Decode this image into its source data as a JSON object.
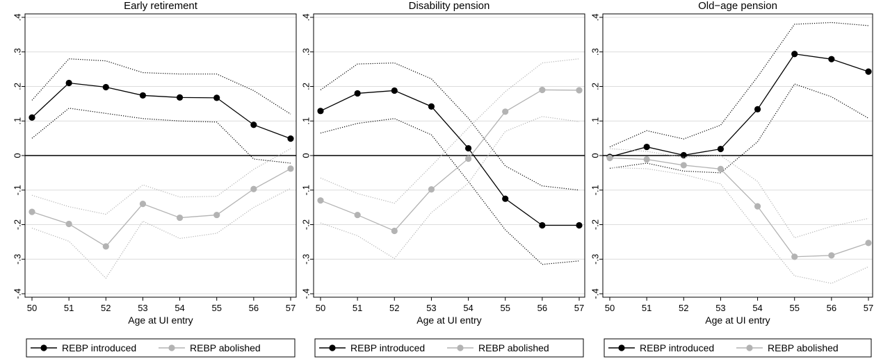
{
  "chart_data": [
    {
      "type": "line",
      "title": "Early retirement",
      "xlabel": "Age at UI entry",
      "ylabel": "",
      "x": [
        50,
        51,
        52,
        53,
        54,
        55,
        56,
        57
      ],
      "xticks": [
        "50",
        "51",
        "52",
        "53",
        "54",
        "55",
        "56",
        "57"
      ],
      "ylim": [
        -0.41,
        0.41
      ],
      "yticks": [
        -0.4,
        -0.3,
        -0.2,
        -0.1,
        0,
        0.1,
        0.2,
        0.3,
        0.4
      ],
      "ytick_labels": [
        "-.4",
        "-.3",
        "-.2",
        "-.1",
        "0",
        ".1",
        ".2",
        ".3",
        ".4"
      ],
      "grid": true,
      "series": [
        {
          "name": "REBP introduced",
          "color": "#000000",
          "values": [
            0.11,
            0.21,
            0.198,
            0.174,
            0.168,
            0.167,
            0.089,
            0.049
          ],
          "ci_upper": [
            0.16,
            0.28,
            0.274,
            0.24,
            0.236,
            0.236,
            0.188,
            0.12
          ],
          "ci_lower": [
            0.05,
            0.137,
            0.122,
            0.107,
            0.1,
            0.097,
            -0.01,
            -0.022
          ]
        },
        {
          "name": "REBP abolished",
          "color": "#b3b3b3",
          "values": [
            -0.163,
            -0.198,
            -0.263,
            -0.14,
            -0.18,
            -0.172,
            -0.097,
            -0.038
          ],
          "ci_upper": [
            -0.115,
            -0.148,
            -0.17,
            -0.085,
            -0.12,
            -0.118,
            -0.04,
            0.02
          ],
          "ci_lower": [
            -0.21,
            -0.248,
            -0.355,
            -0.19,
            -0.24,
            -0.225,
            -0.15,
            -0.095
          ]
        }
      ],
      "legend": {
        "position": "bottom",
        "entries": [
          "REBP introduced",
          "REBP abolished"
        ]
      }
    },
    {
      "type": "line",
      "title": "Disability pension",
      "xlabel": "Age at UI entry",
      "ylabel": "",
      "x": [
        50,
        51,
        52,
        53,
        54,
        55,
        56,
        57
      ],
      "xticks": [
        "50",
        "51",
        "52",
        "53",
        "54",
        "55",
        "56",
        "57"
      ],
      "ylim": [
        -0.41,
        0.41
      ],
      "yticks": [
        -0.4,
        -0.3,
        -0.2,
        -0.1,
        0,
        0.1,
        0.2,
        0.3,
        0.4
      ],
      "ytick_labels": [
        "-.4",
        "-.3",
        "-.2",
        "-.1",
        "0",
        ".1",
        ".2",
        ".3",
        ".4"
      ],
      "grid": true,
      "series": [
        {
          "name": "REBP introduced",
          "color": "#000000",
          "values": [
            0.129,
            0.18,
            0.188,
            0.142,
            0.021,
            -0.125,
            -0.202,
            -0.202
          ],
          "ci_upper": [
            0.19,
            0.265,
            0.268,
            0.222,
            0.108,
            -0.03,
            -0.088,
            -0.1
          ],
          "ci_lower": [
            0.065,
            0.093,
            0.107,
            0.06,
            -0.075,
            -0.215,
            -0.315,
            -0.305
          ]
        },
        {
          "name": "REBP abolished",
          "color": "#b3b3b3",
          "values": [
            -0.13,
            -0.172,
            -0.218,
            -0.098,
            -0.009,
            0.127,
            0.19,
            0.189
          ],
          "ci_upper": [
            -0.065,
            -0.11,
            -0.138,
            -0.03,
            0.08,
            0.185,
            0.268,
            0.28
          ],
          "ci_lower": [
            -0.195,
            -0.232,
            -0.298,
            -0.165,
            -0.08,
            0.07,
            0.113,
            0.098
          ]
        }
      ],
      "legend": {
        "position": "bottom",
        "entries": [
          "REBP introduced",
          "REBP abolished"
        ]
      }
    },
    {
      "type": "line",
      "title": "Old−age pension",
      "xlabel": "Age at UI entry",
      "ylabel": "",
      "x": [
        50,
        51,
        52,
        53,
        54,
        55,
        56,
        57
      ],
      "xticks": [
        "50",
        "51",
        "52",
        "53",
        "54",
        "55",
        "56",
        "57"
      ],
      "ylim": [
        -0.41,
        0.41
      ],
      "yticks": [
        -0.4,
        -0.3,
        -0.2,
        -0.1,
        0,
        0.1,
        0.2,
        0.3,
        0.4
      ],
      "ytick_labels": [
        "-.4",
        "-.3",
        "-.2",
        "-.1",
        "0",
        ".1",
        ".2",
        ".3",
        ".4"
      ],
      "grid": true,
      "series": [
        {
          "name": "REBP introduced",
          "color": "#000000",
          "values": [
            -0.004,
            0.025,
            0.001,
            0.019,
            0.134,
            0.294,
            0.279,
            0.243
          ],
          "ci_upper": [
            0.025,
            0.072,
            0.048,
            0.088,
            0.228,
            0.38,
            0.385,
            0.376
          ],
          "ci_lower": [
            -0.037,
            -0.022,
            -0.045,
            -0.05,
            0.04,
            0.207,
            0.17,
            0.108
          ]
        },
        {
          "name": "REBP abolished",
          "color": "#b3b3b3",
          "values": [
            -0.007,
            -0.011,
            -0.028,
            -0.039,
            -0.147,
            -0.293,
            -0.289,
            -0.253
          ],
          "ci_upper": [
            0.02,
            0.012,
            -0.005,
            0.0,
            -0.075,
            -0.238,
            -0.205,
            -0.182
          ],
          "ci_lower": [
            -0.035,
            -0.038,
            -0.055,
            -0.082,
            -0.218,
            -0.348,
            -0.37,
            -0.322
          ]
        }
      ],
      "legend": {
        "position": "bottom",
        "entries": [
          "REBP introduced",
          "REBP abolished"
        ]
      }
    }
  ]
}
